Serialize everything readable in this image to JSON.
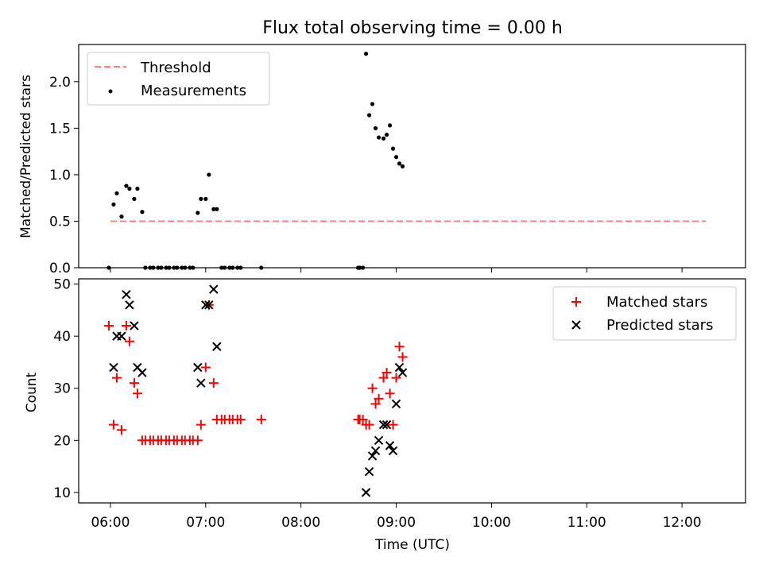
{
  "title": "Flux total observing time = 0.00 h",
  "xlabel": "Time (UTC)",
  "x_ticks": [
    "06:00",
    "07:00",
    "08:00",
    "09:00",
    "10:00",
    "11:00",
    "12:00"
  ],
  "chart_data": [
    {
      "type": "scatter",
      "ylabel": "Matched/Predicted stars",
      "xlim": [
        "05:40",
        "12:40"
      ],
      "ylim": [
        0,
        2.4
      ],
      "y_ticks": [
        "0.0",
        "0.5",
        "1.0",
        "1.5",
        "2.0"
      ],
      "legend": {
        "placement": "top-left",
        "entries": [
          {
            "label": "Threshold"
          },
          {
            "label": "Measurements"
          }
        ]
      },
      "colors": {
        "threshold": "#ff7f7f",
        "measurements": "#000000"
      },
      "threshold": {
        "name": "Threshold",
        "y": 0.5,
        "x_start": "06:00",
        "x_end": "12:15",
        "style": "dashed"
      },
      "series": [
        {
          "name": "Measurements",
          "points": [
            [
              "05:59",
              0.0
            ],
            [
              "06:02",
              0.68
            ],
            [
              "06:04",
              0.8
            ],
            [
              "06:07",
              0.55
            ],
            [
              "06:10",
              0.88
            ],
            [
              "06:12",
              0.85
            ],
            [
              "06:15",
              0.74
            ],
            [
              "06:17",
              0.85
            ],
            [
              "06:20",
              0.6
            ],
            [
              "06:22",
              0.0
            ],
            [
              "06:25",
              0.0
            ],
            [
              "06:27",
              0.0
            ],
            [
              "06:30",
              0.0
            ],
            [
              "06:32",
              0.0
            ],
            [
              "06:35",
              0.0
            ],
            [
              "06:37",
              0.0
            ],
            [
              "06:40",
              0.0
            ],
            [
              "06:42",
              0.0
            ],
            [
              "06:45",
              0.0
            ],
            [
              "06:47",
              0.0
            ],
            [
              "06:50",
              0.0
            ],
            [
              "06:52",
              0.0
            ],
            [
              "06:55",
              0.59
            ],
            [
              "06:57",
              0.74
            ],
            [
              "07:00",
              0.74
            ],
            [
              "07:02",
              1.0
            ],
            [
              "07:05",
              0.63
            ],
            [
              "07:07",
              0.63
            ],
            [
              "07:10",
              0.0
            ],
            [
              "07:12",
              0.0
            ],
            [
              "07:15",
              0.0
            ],
            [
              "07:17",
              0.0
            ],
            [
              "07:20",
              0.0
            ],
            [
              "07:22",
              0.0
            ],
            [
              "07:35",
              0.0
            ],
            [
              "08:36",
              0.0
            ],
            [
              "08:37",
              0.0
            ],
            [
              "08:39",
              0.0
            ],
            [
              "08:41",
              2.3
            ],
            [
              "08:43",
              1.64
            ],
            [
              "08:45",
              1.76
            ],
            [
              "08:47",
              1.5
            ],
            [
              "08:49",
              1.4
            ],
            [
              "08:52",
              1.39
            ],
            [
              "08:54",
              1.43
            ],
            [
              "08:56",
              1.53
            ],
            [
              "08:58",
              1.28
            ],
            [
              "09:00",
              1.19
            ],
            [
              "09:02",
              1.12
            ],
            [
              "09:04",
              1.09
            ]
          ]
        }
      ]
    },
    {
      "type": "scatter",
      "ylabel": "Count",
      "xlim": [
        "05:40",
        "12:40"
      ],
      "ylim": [
        8,
        51
      ],
      "y_ticks": [
        "10",
        "20",
        "30",
        "40",
        "50"
      ],
      "legend": {
        "placement": "top-right",
        "entries": [
          {
            "label": "Matched stars"
          },
          {
            "label": "Predicted stars"
          }
        ]
      },
      "colors": {
        "matched": "#ff0000",
        "predicted": "#000000"
      },
      "series": [
        {
          "name": "Matched stars",
          "marker": "plus",
          "points": [
            [
              "05:59",
              42
            ],
            [
              "06:02",
              23
            ],
            [
              "06:04",
              32
            ],
            [
              "06:07",
              22
            ],
            [
              "06:10",
              42
            ],
            [
              "06:12",
              39
            ],
            [
              "06:15",
              31
            ],
            [
              "06:17",
              29
            ],
            [
              "06:20",
              20
            ],
            [
              "06:22",
              20
            ],
            [
              "06:25",
              20
            ],
            [
              "06:27",
              20
            ],
            [
              "06:30",
              20
            ],
            [
              "06:32",
              20
            ],
            [
              "06:35",
              20
            ],
            [
              "06:37",
              20
            ],
            [
              "06:40",
              20
            ],
            [
              "06:42",
              20
            ],
            [
              "06:45",
              20
            ],
            [
              "06:47",
              20
            ],
            [
              "06:50",
              20
            ],
            [
              "06:52",
              20
            ],
            [
              "06:55",
              20
            ],
            [
              "06:57",
              23
            ],
            [
              "07:00",
              34
            ],
            [
              "07:02",
              46
            ],
            [
              "07:05",
              31
            ],
            [
              "07:07",
              24
            ],
            [
              "07:10",
              24
            ],
            [
              "07:12",
              24
            ],
            [
              "07:15",
              24
            ],
            [
              "07:17",
              24
            ],
            [
              "07:20",
              24
            ],
            [
              "07:22",
              24
            ],
            [
              "07:35",
              24
            ],
            [
              "08:36",
              24
            ],
            [
              "08:37",
              24
            ],
            [
              "08:39",
              24
            ],
            [
              "08:41",
              23
            ],
            [
              "08:43",
              23
            ],
            [
              "08:45",
              30
            ],
            [
              "08:47",
              27
            ],
            [
              "08:49",
              28
            ],
            [
              "08:52",
              32
            ],
            [
              "08:54",
              33
            ],
            [
              "08:56",
              29
            ],
            [
              "08:58",
              23
            ],
            [
              "09:00",
              32
            ],
            [
              "09:02",
              38
            ],
            [
              "09:04",
              36
            ]
          ]
        },
        {
          "name": "Predicted stars",
          "marker": "x",
          "points": [
            [
              "06:02",
              34
            ],
            [
              "06:04",
              40
            ],
            [
              "06:07",
              40
            ],
            [
              "06:10",
              48
            ],
            [
              "06:12",
              46
            ],
            [
              "06:15",
              42
            ],
            [
              "06:17",
              34
            ],
            [
              "06:20",
              33
            ],
            [
              "06:55",
              34
            ],
            [
              "06:57",
              31
            ],
            [
              "07:00",
              46
            ],
            [
              "07:02",
              46
            ],
            [
              "07:05",
              49
            ],
            [
              "07:07",
              38
            ],
            [
              "08:41",
              10
            ],
            [
              "08:43",
              14
            ],
            [
              "08:45",
              17
            ],
            [
              "08:47",
              18
            ],
            [
              "08:49",
              20
            ],
            [
              "08:52",
              23
            ],
            [
              "08:54",
              23
            ],
            [
              "08:56",
              19
            ],
            [
              "08:58",
              18
            ],
            [
              "09:00",
              27
            ],
            [
              "09:02",
              34
            ],
            [
              "09:04",
              33
            ]
          ]
        }
      ]
    }
  ]
}
